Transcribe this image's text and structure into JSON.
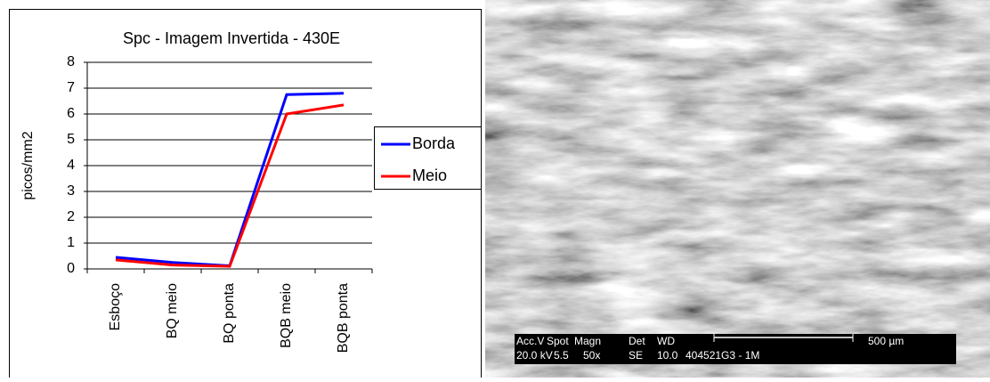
{
  "chart_data": {
    "type": "line",
    "title": "Spc - Imagem Invertida - 430E",
    "y_label": "picos/mm2",
    "categories": [
      "Esboço",
      "BQ meio",
      "BQ ponta",
      "BQB meio",
      "BQB ponta"
    ],
    "series": [
      {
        "name": "Borda",
        "color": "#0000ff",
        "values": [
          0.45,
          0.25,
          0.12,
          6.75,
          6.8
        ]
      },
      {
        "name": "Meio",
        "color": "#ff0000",
        "values": [
          0.35,
          0.15,
          0.1,
          6.0,
          6.35
        ]
      }
    ],
    "ylim": [
      0,
      8
    ],
    "yticks": [
      0,
      1,
      2,
      3,
      4,
      5,
      6,
      7,
      8
    ],
    "grid": true,
    "legend": "right"
  },
  "image_info": {
    "row1": [
      "Acc.V",
      "Spot",
      "Magn",
      "Det",
      "WD",
      "500 µm"
    ],
    "row2": [
      "20.0 kV",
      "5.5",
      "50x",
      "SE",
      "10.0",
      "404521G3 - 1M"
    ]
  }
}
